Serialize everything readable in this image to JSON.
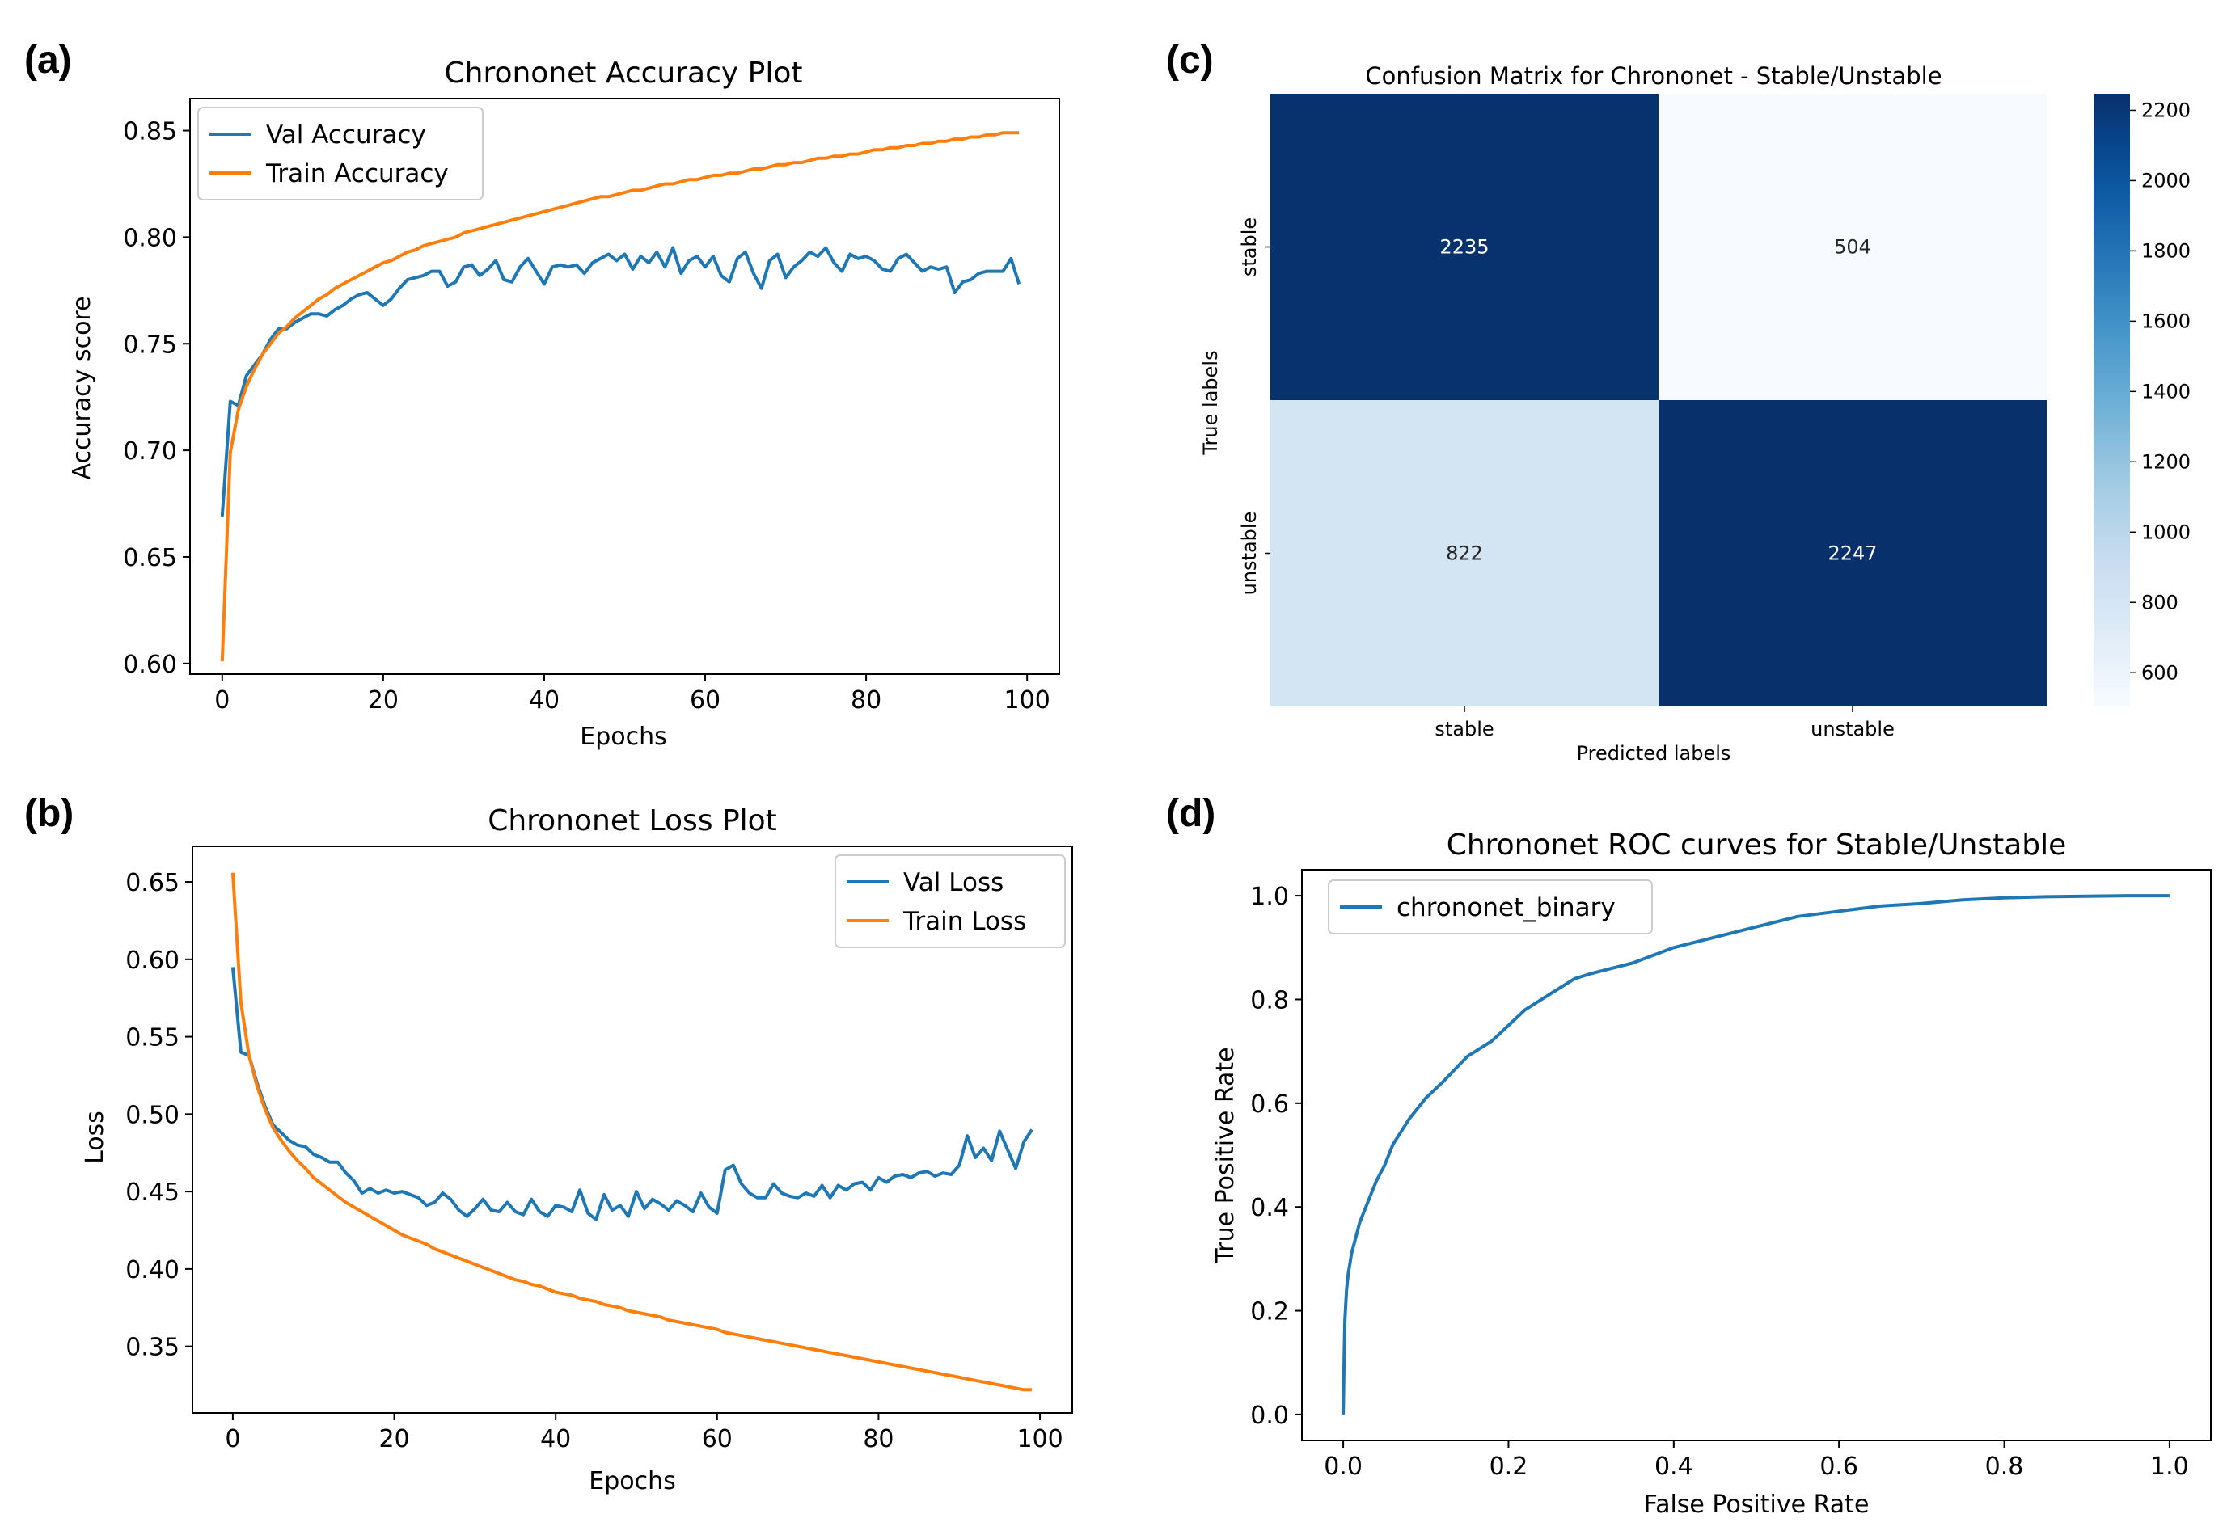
{
  "panels": [
    {
      "label": "(a)"
    },
    {
      "label": "(b)"
    },
    {
      "label": "(c)"
    },
    {
      "label": "(d)"
    }
  ],
  "chart_data": [
    {
      "id": "accuracy",
      "type": "line",
      "title": "Chrononet Accuracy Plot",
      "xlabel": "Epochs",
      "ylabel": "Accuracy score",
      "xlim": [
        -4,
        104
      ],
      "ylim": [
        0.595,
        0.865
      ],
      "xticks": [
        0,
        20,
        40,
        60,
        80,
        100
      ],
      "yticks": [
        0.6,
        0.65,
        0.7,
        0.75,
        0.8,
        0.85
      ],
      "legend_position": "top-left",
      "series": [
        {
          "name": "Val Accuracy",
          "color": "#1f77b4",
          "values": [
            0.669,
            0.723,
            0.721,
            0.735,
            0.74,
            0.745,
            0.752,
            0.757,
            0.757,
            0.76,
            0.762,
            0.764,
            0.764,
            0.763,
            0.766,
            0.768,
            0.771,
            0.773,
            0.774,
            0.771,
            0.768,
            0.771,
            0.776,
            0.78,
            0.781,
            0.782,
            0.784,
            0.784,
            0.777,
            0.779,
            0.786,
            0.787,
            0.782,
            0.785,
            0.789,
            0.78,
            0.779,
            0.786,
            0.79,
            0.784,
            0.778,
            0.786,
            0.787,
            0.786,
            0.787,
            0.783,
            0.788,
            0.79,
            0.792,
            0.789,
            0.792,
            0.785,
            0.791,
            0.788,
            0.793,
            0.786,
            0.795,
            0.783,
            0.789,
            0.791,
            0.786,
            0.791,
            0.782,
            0.779,
            0.79,
            0.793,
            0.783,
            0.776,
            0.789,
            0.792,
            0.781,
            0.786,
            0.789,
            0.793,
            0.791,
            0.795,
            0.788,
            0.784,
            0.792,
            0.79,
            0.791,
            0.789,
            0.785,
            0.784,
            0.79,
            0.792,
            0.788,
            0.784,
            0.786,
            0.785,
            0.786,
            0.774,
            0.779,
            0.78,
            0.783,
            0.784,
            0.784,
            0.784,
            0.79,
            0.778
          ]
        },
        {
          "name": "Train Accuracy",
          "color": "#ff7f0e",
          "values": [
            0.601,
            0.699,
            0.719,
            0.73,
            0.738,
            0.745,
            0.75,
            0.755,
            0.758,
            0.762,
            0.765,
            0.768,
            0.771,
            0.773,
            0.776,
            0.778,
            0.78,
            0.782,
            0.784,
            0.786,
            0.788,
            0.789,
            0.791,
            0.793,
            0.794,
            0.796,
            0.797,
            0.798,
            0.799,
            0.8,
            0.802,
            0.803,
            0.804,
            0.805,
            0.806,
            0.807,
            0.808,
            0.809,
            0.81,
            0.811,
            0.812,
            0.813,
            0.814,
            0.815,
            0.816,
            0.817,
            0.818,
            0.819,
            0.819,
            0.82,
            0.821,
            0.822,
            0.822,
            0.823,
            0.824,
            0.825,
            0.825,
            0.826,
            0.827,
            0.827,
            0.828,
            0.829,
            0.829,
            0.83,
            0.83,
            0.831,
            0.832,
            0.832,
            0.833,
            0.834,
            0.834,
            0.835,
            0.835,
            0.836,
            0.837,
            0.837,
            0.838,
            0.838,
            0.839,
            0.839,
            0.84,
            0.841,
            0.841,
            0.842,
            0.842,
            0.843,
            0.843,
            0.844,
            0.844,
            0.845,
            0.845,
            0.846,
            0.846,
            0.847,
            0.847,
            0.848,
            0.848,
            0.849,
            0.849,
            0.849
          ]
        }
      ]
    },
    {
      "id": "loss",
      "type": "line",
      "title": "Chrononet Loss Plot",
      "xlabel": "Epochs",
      "ylabel": "Loss",
      "xlim": [
        -5,
        104
      ],
      "ylim": [
        0.307,
        0.673
      ],
      "xticks": [
        0,
        20,
        40,
        60,
        80,
        100
      ],
      "yticks": [
        0.35,
        0.4,
        0.45,
        0.5,
        0.55,
        0.6,
        0.65
      ],
      "legend_position": "top-right",
      "series": [
        {
          "name": "Val Loss",
          "color": "#1f77b4",
          "values": [
            0.595,
            0.54,
            0.538,
            0.52,
            0.505,
            0.493,
            0.488,
            0.483,
            0.48,
            0.479,
            0.474,
            0.472,
            0.469,
            0.469,
            0.462,
            0.457,
            0.449,
            0.452,
            0.449,
            0.451,
            0.449,
            0.45,
            0.448,
            0.446,
            0.441,
            0.443,
            0.449,
            0.445,
            0.438,
            0.434,
            0.439,
            0.445,
            0.438,
            0.437,
            0.443,
            0.437,
            0.435,
            0.445,
            0.437,
            0.434,
            0.441,
            0.44,
            0.437,
            0.451,
            0.436,
            0.432,
            0.448,
            0.438,
            0.441,
            0.434,
            0.45,
            0.439,
            0.445,
            0.442,
            0.438,
            0.444,
            0.441,
            0.437,
            0.449,
            0.44,
            0.436,
            0.464,
            0.467,
            0.455,
            0.449,
            0.446,
            0.446,
            0.455,
            0.449,
            0.447,
            0.446,
            0.449,
            0.447,
            0.454,
            0.446,
            0.454,
            0.451,
            0.455,
            0.456,
            0.451,
            0.459,
            0.456,
            0.46,
            0.461,
            0.459,
            0.462,
            0.463,
            0.46,
            0.462,
            0.461,
            0.467,
            0.486,
            0.472,
            0.478,
            0.47,
            0.489,
            0.477,
            0.465,
            0.482,
            0.49
          ]
        },
        {
          "name": "Train Loss",
          "color": "#ff7f0e",
          "values": [
            0.656,
            0.572,
            0.538,
            0.518,
            0.503,
            0.491,
            0.483,
            0.476,
            0.47,
            0.465,
            0.459,
            0.455,
            0.451,
            0.447,
            0.443,
            0.44,
            0.437,
            0.434,
            0.431,
            0.428,
            0.425,
            0.422,
            0.42,
            0.418,
            0.416,
            0.413,
            0.411,
            0.409,
            0.407,
            0.405,
            0.403,
            0.401,
            0.399,
            0.397,
            0.395,
            0.393,
            0.392,
            0.39,
            0.389,
            0.387,
            0.385,
            0.384,
            0.383,
            0.381,
            0.38,
            0.379,
            0.377,
            0.376,
            0.375,
            0.373,
            0.372,
            0.371,
            0.37,
            0.369,
            0.367,
            0.366,
            0.365,
            0.364,
            0.363,
            0.362,
            0.361,
            0.359,
            0.358,
            0.357,
            0.356,
            0.355,
            0.354,
            0.353,
            0.352,
            0.351,
            0.35,
            0.349,
            0.348,
            0.347,
            0.346,
            0.345,
            0.344,
            0.343,
            0.342,
            0.341,
            0.34,
            0.339,
            0.338,
            0.337,
            0.336,
            0.335,
            0.334,
            0.333,
            0.332,
            0.331,
            0.33,
            0.329,
            0.328,
            0.327,
            0.326,
            0.325,
            0.324,
            0.323,
            0.322,
            0.322
          ]
        }
      ]
    },
    {
      "id": "confusion",
      "type": "heatmap",
      "title": "Confusion Matrix for Chrononet - Stable/Unstable",
      "xlabel": "Predicted labels",
      "ylabel": "True labels",
      "row_labels": [
        "stable",
        "unstable"
      ],
      "col_labels": [
        "stable",
        "unstable"
      ],
      "matrix": [
        [
          2235,
          504
        ],
        [
          822,
          2247
        ]
      ],
      "colorbar_range": [
        504,
        2247
      ],
      "colorbar_ticks": [
        600,
        800,
        1000,
        1200,
        1400,
        1600,
        1800,
        2000,
        2200
      ],
      "colormap": "Blues"
    },
    {
      "id": "roc",
      "type": "line",
      "title": "Chrononet ROC curves for Stable/Unstable",
      "xlabel": "False Positive Rate",
      "ylabel": "True Positive Rate",
      "xlim": [
        -0.05,
        1.05
      ],
      "ylim": [
        -0.05,
        1.05
      ],
      "xticks": [
        0.0,
        0.2,
        0.4,
        0.6,
        0.8,
        1.0
      ],
      "yticks": [
        0.0,
        0.2,
        0.4,
        0.6,
        0.8,
        1.0
      ],
      "legend_position": "top-left",
      "series": [
        {
          "name": "chrononet_binary",
          "color": "#1f77b4",
          "x": [
            0,
            0.001,
            0.002,
            0.004,
            0.006,
            0.008,
            0.01,
            0.015,
            0.02,
            0.03,
            0.04,
            0.05,
            0.06,
            0.08,
            0.1,
            0.12,
            0.15,
            0.18,
            0.2,
            0.22,
            0.25,
            0.28,
            0.3,
            0.35,
            0.4,
            0.45,
            0.5,
            0.55,
            0.6,
            0.65,
            0.7,
            0.75,
            0.8,
            0.85,
            0.9,
            0.95,
            1.0
          ],
          "y": [
            0,
            0.1,
            0.18,
            0.24,
            0.27,
            0.29,
            0.31,
            0.34,
            0.37,
            0.41,
            0.45,
            0.48,
            0.52,
            0.57,
            0.61,
            0.64,
            0.69,
            0.72,
            0.75,
            0.78,
            0.81,
            0.84,
            0.85,
            0.87,
            0.9,
            0.92,
            0.94,
            0.96,
            0.97,
            0.98,
            0.985,
            0.992,
            0.996,
            0.998,
            0.999,
            1.0,
            1.0
          ]
        }
      ]
    }
  ]
}
